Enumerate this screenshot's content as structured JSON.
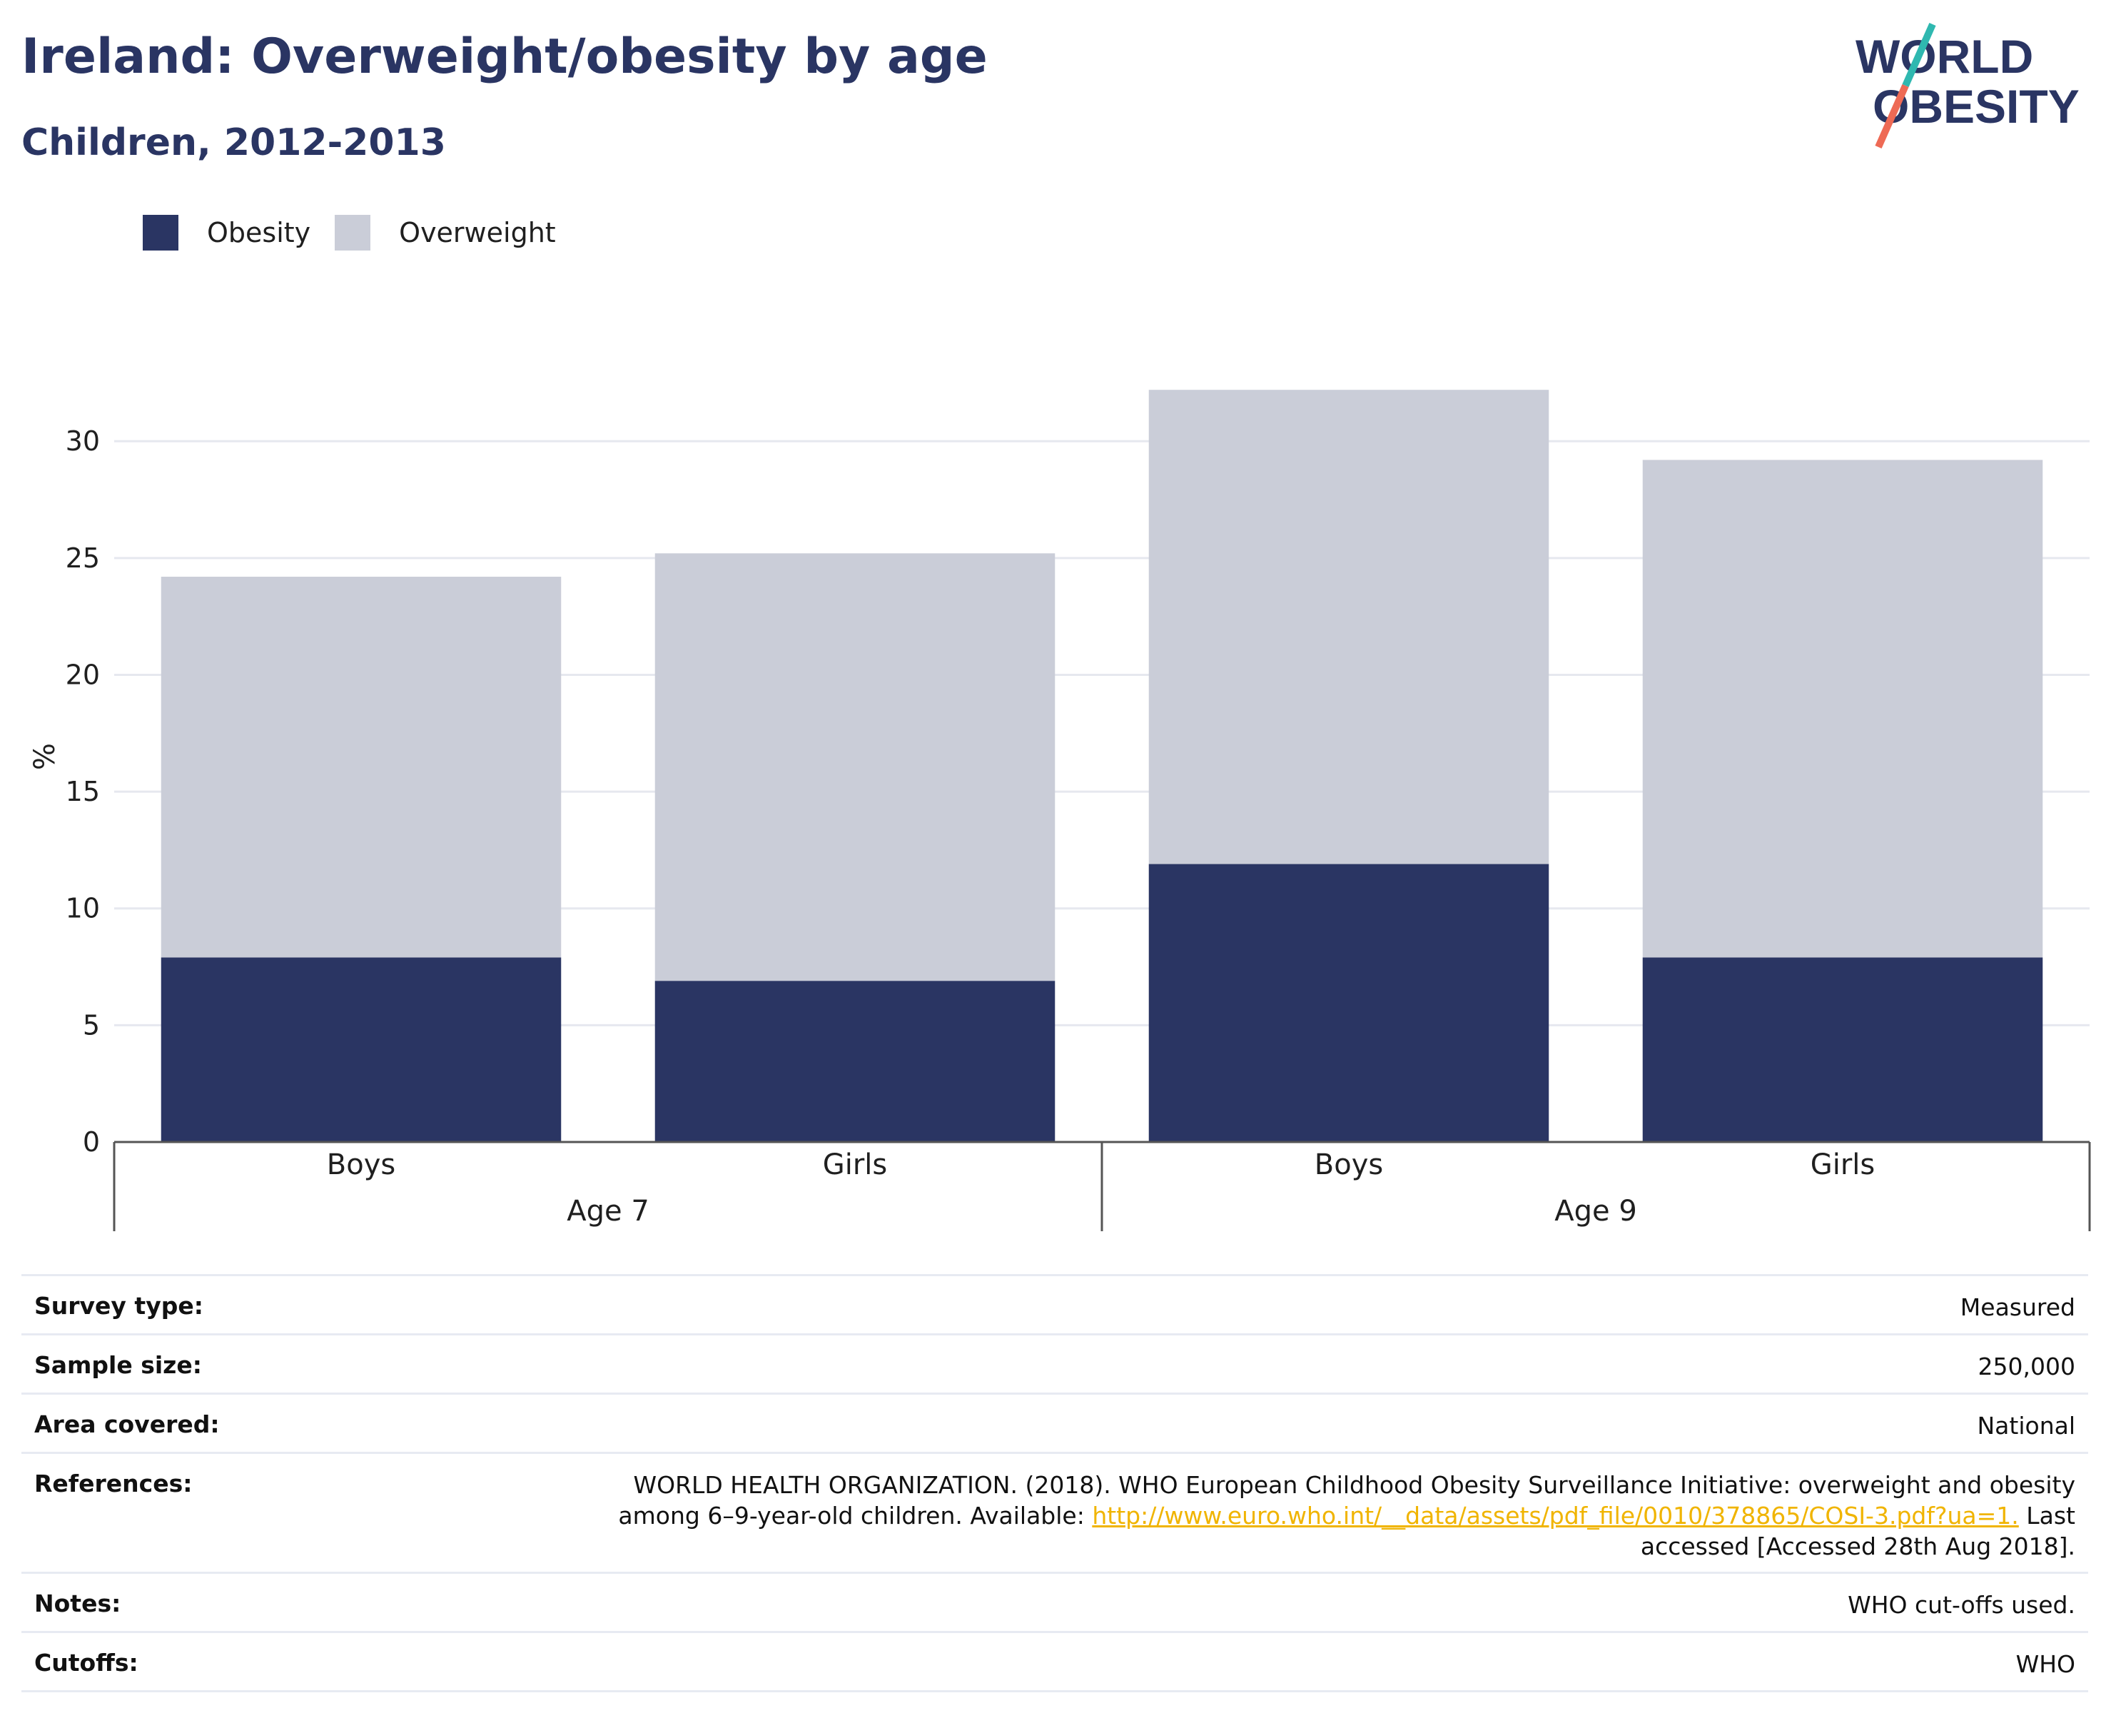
{
  "header": {
    "title": "Ireland: Overweight/obesity by age",
    "subtitle": "Children, 2012-2013"
  },
  "logo": {
    "line1": "WORLD",
    "line2": "OBESITY"
  },
  "colors": {
    "obesity": "#2a3563",
    "overweight": "#cacdd8",
    "link": "#f0b400",
    "title": "#2a3563"
  },
  "chart_data": {
    "type": "bar",
    "stacked": true,
    "ylabel": "%",
    "ylim": [
      0,
      33
    ],
    "yticks": [
      0,
      5,
      10,
      15,
      20,
      25,
      30
    ],
    "grid": true,
    "legend_position": "top-left",
    "categories": [
      "Boys",
      "Girls",
      "Boys",
      "Girls"
    ],
    "groups": [
      {
        "label": "Age 7",
        "members": [
          0,
          1
        ]
      },
      {
        "label": "Age 9",
        "members": [
          2,
          3
        ]
      }
    ],
    "series": [
      {
        "name": "Obesity",
        "values": [
          7.9,
          6.9,
          11.9,
          7.9
        ]
      },
      {
        "name": "Overweight",
        "values": [
          16.3,
          18.3,
          20.3,
          21.3
        ]
      }
    ],
    "totals": [
      24.2,
      25.2,
      32.2,
      29.2
    ]
  },
  "info": {
    "survey_type": {
      "label": "Survey type:",
      "value": "Measured"
    },
    "sample_size": {
      "label": "Sample size:",
      "value": "250,000"
    },
    "area_covered": {
      "label": "Area covered:",
      "value": "National"
    },
    "references": {
      "label": "References:",
      "text_before": "WORLD HEALTH ORGANIZATION. (2018). WHO European Childhood Obesity Surveillance Initiative: overweight and obesity among 6–9-year-old children. Available: ",
      "link": "http://www.euro.who.int/__data/assets/pdf_file/0010/378865/COSI-3.pdf?ua=1.",
      "text_after": " Last accessed [Accessed 28th Aug 2018]."
    },
    "notes": {
      "label": "Notes:",
      "value": "WHO cut-offs used."
    },
    "cutoffs": {
      "label": "Cutoffs:",
      "value": "WHO"
    }
  }
}
